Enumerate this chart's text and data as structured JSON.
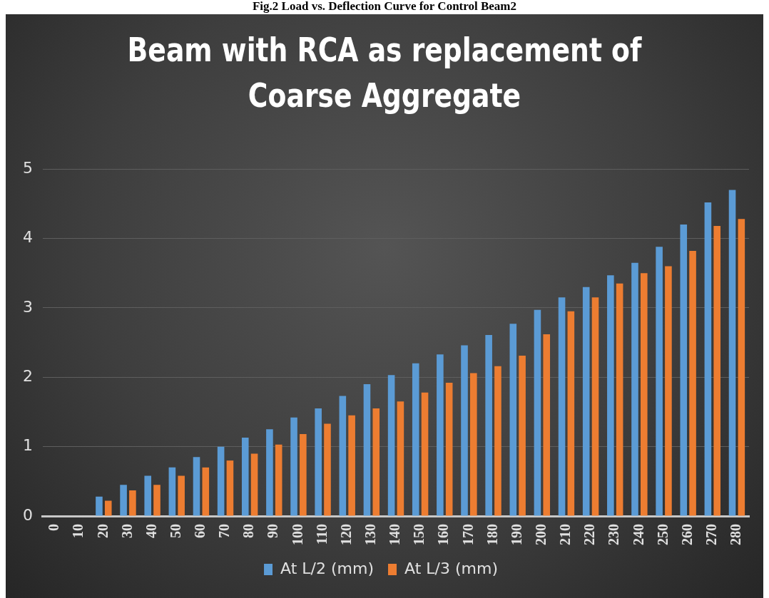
{
  "chart_data": {
    "type": "bar",
    "title": "Beam with RCA as replacement of Coarse Aggregate",
    "annotations": [
      "Fig.2 Load vs. Deflection Curve for Control Beam2"
    ],
    "categories": [
      "0",
      "10",
      "20",
      "30",
      "40",
      "50",
      "60",
      "70",
      "80",
      "90",
      "100",
      "110",
      "120",
      "130",
      "140",
      "150",
      "160",
      "170",
      "180",
      "190",
      "200",
      "210",
      "220",
      "230",
      "240",
      "250",
      "260",
      "270",
      "280"
    ],
    "series": [
      {
        "name": "At L/2 (mm)",
        "color": "#5b9bd5",
        "values": [
          0,
          0,
          0.28,
          0.45,
          0.58,
          0.7,
          0.85,
          1.0,
          1.13,
          1.25,
          1.42,
          1.55,
          1.73,
          1.9,
          2.03,
          2.2,
          2.33,
          2.46,
          2.61,
          2.77,
          2.97,
          3.15,
          3.3,
          3.47,
          3.65,
          3.88,
          4.2,
          4.52,
          4.7
        ]
      },
      {
        "name": "At L/3 (mm)",
        "color": "#ed7d31",
        "values": [
          0,
          0,
          0.22,
          0.37,
          0.45,
          0.58,
          0.7,
          0.8,
          0.9,
          1.03,
          1.18,
          1.33,
          1.45,
          1.55,
          1.65,
          1.78,
          1.92,
          2.06,
          2.16,
          2.31,
          2.62,
          2.95,
          3.15,
          3.35,
          3.5,
          3.6,
          3.82,
          4.18,
          4.28
        ]
      }
    ],
    "ylim": [
      0,
      5
    ],
    "yticks": [
      0,
      1,
      2,
      3,
      4,
      5
    ],
    "grid": "y",
    "legend": "bottom"
  }
}
